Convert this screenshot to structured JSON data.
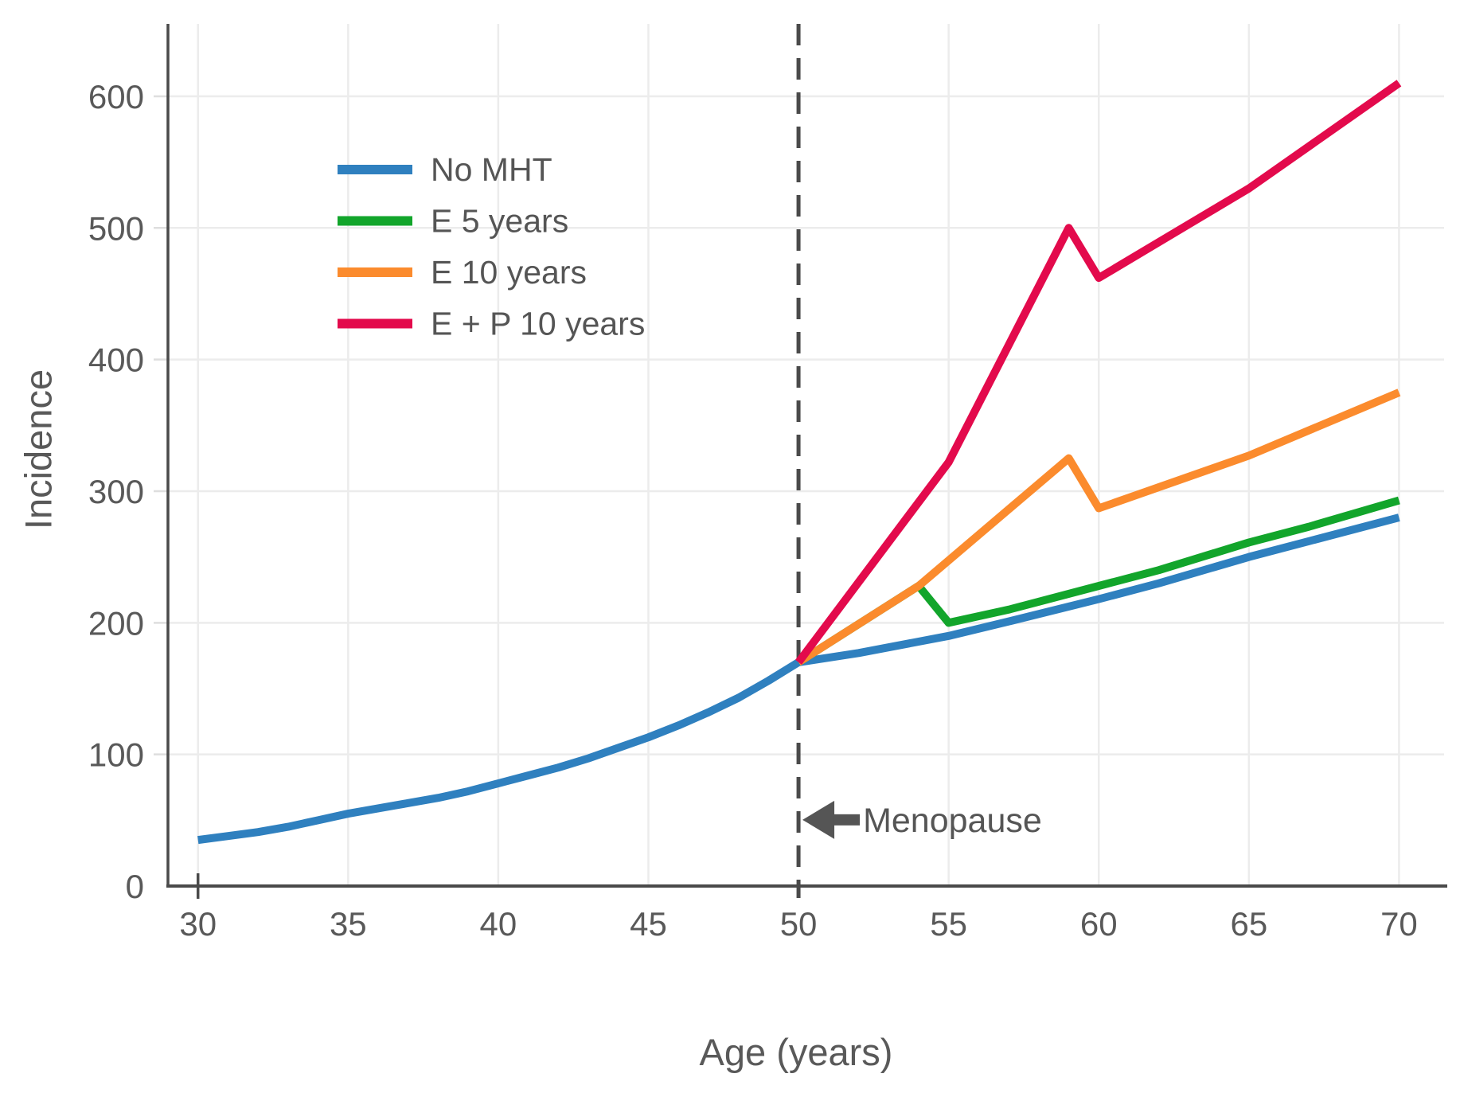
{
  "chart_data": {
    "type": "line",
    "title": "",
    "xlabel": "Age (years)",
    "ylabel": "Incidence",
    "x_ticks": [
      30,
      35,
      40,
      45,
      50,
      55,
      60,
      65,
      70
    ],
    "y_ticks": [
      0,
      100,
      200,
      300,
      400,
      500,
      600
    ],
    "xlim": [
      29,
      71.5
    ],
    "ylim": [
      0,
      655
    ],
    "grid": true,
    "legend_position": "upper-left-inside",
    "series": [
      {
        "name": "No MHT",
        "color": "#2F80BF",
        "x": [
          30,
          31,
          32,
          33,
          34,
          35,
          36,
          37,
          38,
          39,
          40,
          41,
          42,
          43,
          44,
          45,
          46,
          47,
          48,
          49,
          50,
          52,
          55,
          57,
          60,
          62,
          65,
          67,
          70
        ],
        "y": [
          35,
          38,
          41,
          45,
          50,
          55,
          59,
          63,
          67,
          72,
          78,
          84,
          90,
          97,
          105,
          113,
          122,
          132,
          143,
          156,
          170,
          177,
          190,
          201,
          218,
          230,
          250,
          262,
          280
        ]
      },
      {
        "name": "E 5 years",
        "color": "#12A52B",
        "x": [
          50,
          54,
          55,
          57,
          60,
          62,
          65,
          67,
          70
        ],
        "y": [
          170,
          228,
          200,
          210,
          228,
          240,
          261,
          273,
          293
        ]
      },
      {
        "name": "E 10 years",
        "color": "#FB8B2D",
        "x": [
          50,
          54,
          59,
          60,
          65,
          70
        ],
        "y": [
          170,
          228,
          325,
          287,
          327,
          375
        ]
      },
      {
        "name": "E + P 10 years",
        "color": "#E30A4C",
        "x": [
          50,
          55,
          59,
          60,
          65,
          70
        ],
        "y": [
          170,
          322,
          500,
          462,
          530,
          610
        ]
      }
    ],
    "reference_line": {
      "x": 50,
      "style": "dashed",
      "color": "#4A4A4A"
    },
    "annotations": [
      {
        "text": "Menopause",
        "arrow": "left",
        "x": 50,
        "y": 50
      }
    ]
  },
  "colors": {
    "background": "#FFFFFF",
    "grid": "#ECECEC",
    "spine": "#4A4A4A",
    "tick_text": "#595959",
    "legend_text": "#555555",
    "annotation": "#555555"
  }
}
